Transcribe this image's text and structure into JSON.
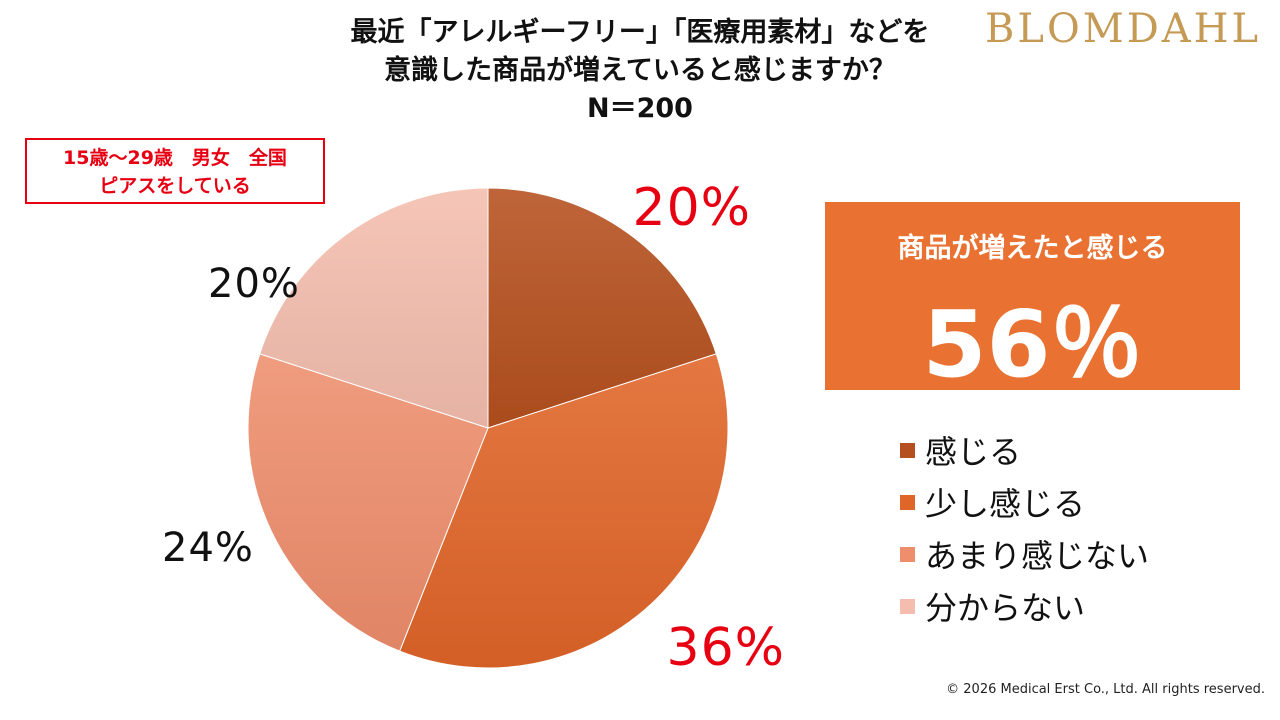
{
  "header": {
    "title_line1": "最近「アレルギーフリー」「医療用素材」などを",
    "title_line2": "意識した商品が増えていると感じますか？",
    "sample_size": "N＝200",
    "brand": "BLOMDAHL"
  },
  "badge": {
    "line1": "15歳～29歳　男女　全国",
    "line2": "ピアスをしている"
  },
  "summary": {
    "label": "商品が増えたと感じる",
    "value": "56％"
  },
  "footer": {
    "copyright": "© 2026 Medical Erst Co., Ltd. All rights reserved."
  },
  "chart_data": {
    "type": "pie",
    "title": "",
    "categories": [
      "感じる",
      "少し感じる",
      "あまり感じない",
      "分からない"
    ],
    "values": [
      20,
      36,
      24,
      20
    ],
    "labels": [
      "20%",
      "36%",
      "24%",
      "20%"
    ],
    "colors": [
      "#b5501e",
      "#e06528",
      "#ee8e6c",
      "#f4bdad"
    ],
    "label_colors": [
      "#e60012",
      "#e60012",
      "#111111",
      "#111111"
    ],
    "start": "12 o'clock",
    "direction": "clockwise",
    "legend_position": "right"
  }
}
